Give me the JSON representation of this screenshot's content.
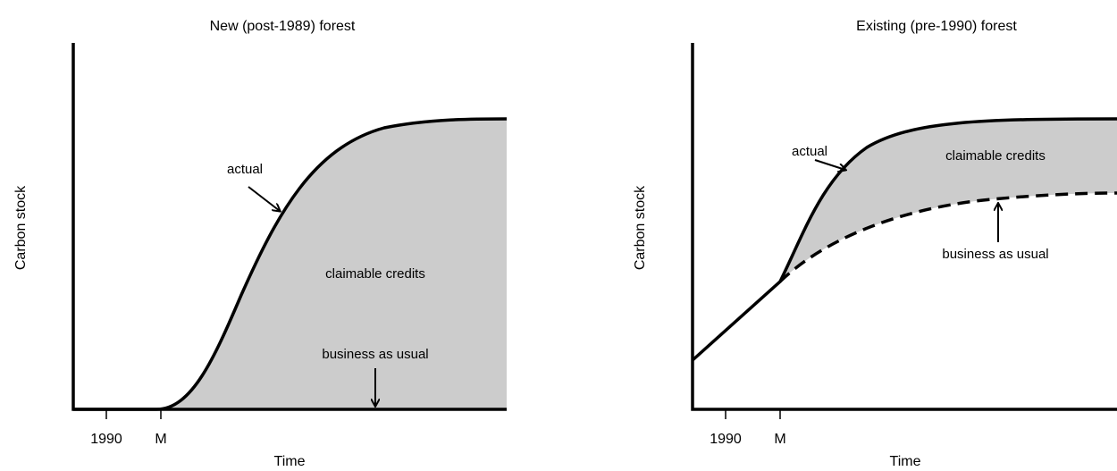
{
  "panels": [
    {
      "title": "New (post-1989) forest",
      "y_label": "Carbon stock",
      "x_label": "Time",
      "x_tick_labels": [
        "1990",
        "M"
      ],
      "annotations": {
        "actual": "actual",
        "credits": "claimable credits",
        "bau": "business as usual"
      }
    },
    {
      "title": "Existing (pre-1990) forest",
      "y_label": "Carbon stock",
      "x_label": "Time",
      "x_tick_labels": [
        "1990",
        "M"
      ],
      "annotations": {
        "actual": "actual",
        "credits": "claimable credits",
        "bau": "business as usual"
      }
    }
  ]
}
